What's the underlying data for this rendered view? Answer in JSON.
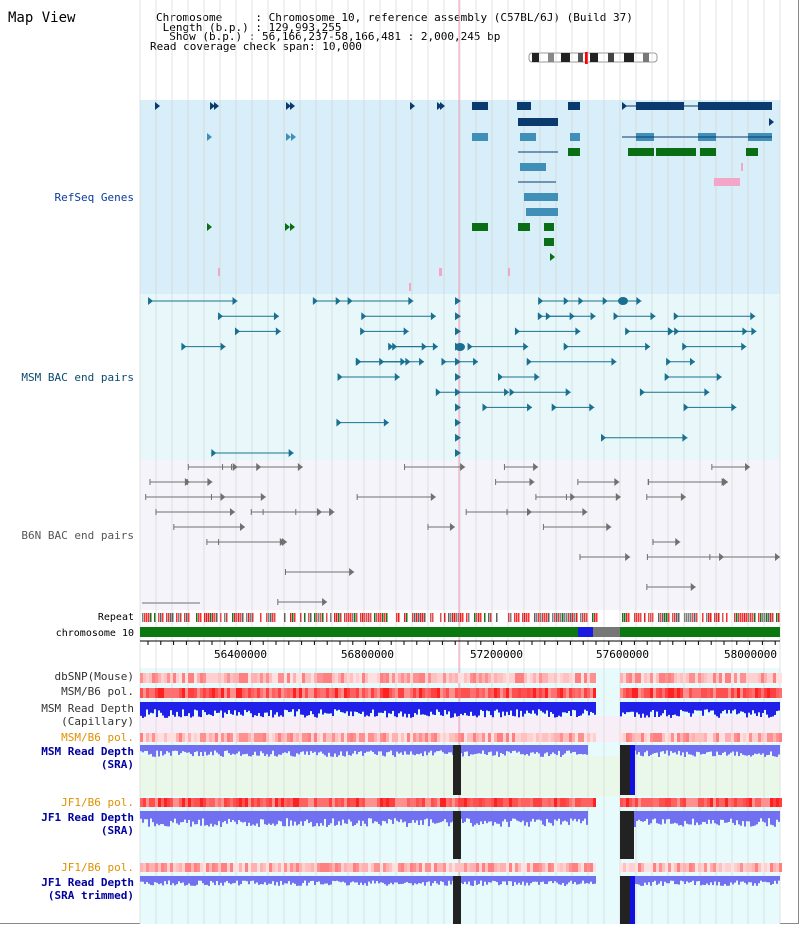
{
  "title": "Map View",
  "info": {
    "chromosome_key": "Chromosome     ",
    "chromosome_value": ": Chromosome 10, reference assembly (C57BL/6J) (Build 37)",
    "length_key": " Length (b.p.) ",
    "length_value": ": 129,993,255",
    "show_key": "  Show (b.p.) ",
    "show_value": ": 56,166,237-58,166,481 : 2,000,245 bp",
    "coverage_key": "Read coverage check span",
    "coverage_value": ": 10,000"
  },
  "tracks": {
    "refseq": "RefSeq Genes",
    "msm_bac": "MSM BAC end pairs",
    "b6n_bac": "B6N BAC end pairs",
    "repeat": "Repeat",
    "chromosome": "chromosome 10",
    "dbsnp": "dbSNP(Mouse)",
    "msm_b6_pol": "MSM/B6 pol.",
    "msm_read_depth_cap_1": "MSM Read Depth",
    "msm_read_depth_cap_2": "(Capillary)",
    "msm_b6_pol_2": "MSM/B6 pol.",
    "msm_read_depth_sra_1": "MSM Read Depth",
    "msm_read_depth_sra_2": "(SRA)",
    "jf1_b6_pol": "JF1/B6 pol.",
    "jf1_read_depth_sra_1": "JF1 Read Depth",
    "jf1_read_depth_sra_2": "(SRA)",
    "jf1_b6_pol_2": "JF1/B6 pol.",
    "jf1_read_depth_trim_1": "JF1 Read Depth",
    "jf1_read_depth_trim_2": "(SRA trimmed)"
  },
  "axis": {
    "ticks": [
      "56400000",
      "56800000",
      "57200000",
      "57600000",
      "58000000"
    ]
  },
  "colors": {
    "refseq_bg": "#d8eef8",
    "msm_bg": "#e8f8fa",
    "b6n_bg": "#f4f4fa",
    "refseq_dark": "#0b3a6e",
    "refseq_mid": "#3f8fb8",
    "refseq_green": "#0a6e14",
    "refseq_pink": "#f4a6c8",
    "msm_bac": "#1a7090",
    "b6n_bac": "#707070",
    "chrom_green": "#0a7a10",
    "depth_blue": "#1010e0",
    "orange_label": "#e09000",
    "blue_label": "#0000a0"
  }
}
